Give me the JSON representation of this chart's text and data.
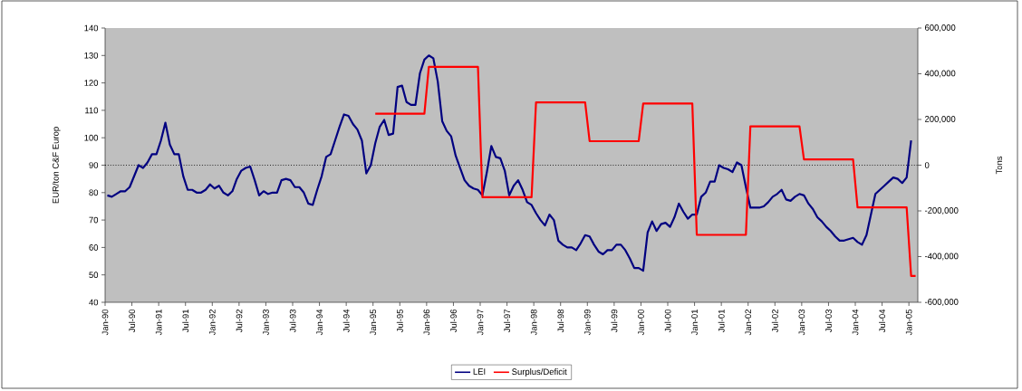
{
  "chart_data": {
    "type": "line",
    "ylabel": "EUR/ton C&F Europ",
    "y2label": "Tons",
    "x": [
      "1990-01",
      "1990-02",
      "1990-03",
      "1990-04",
      "1990-05",
      "1990-06",
      "1990-07",
      "1990-08",
      "1990-09",
      "1990-10",
      "1990-11",
      "1990-12",
      "1991-01",
      "1991-02",
      "1991-03",
      "1991-04",
      "1991-05",
      "1991-06",
      "1991-07",
      "1991-08",
      "1991-09",
      "1991-10",
      "1991-11",
      "1991-12",
      "1992-01",
      "1992-02",
      "1992-03",
      "1992-04",
      "1992-05",
      "1992-06",
      "1992-07",
      "1992-08",
      "1992-09",
      "1992-10",
      "1992-11",
      "1992-12",
      "1993-01",
      "1993-02",
      "1993-03",
      "1993-04",
      "1993-05",
      "1993-06",
      "1993-07",
      "1993-08",
      "1993-09",
      "1993-10",
      "1993-11",
      "1993-12",
      "1994-01",
      "1994-02",
      "1994-03",
      "1994-04",
      "1994-05",
      "1994-06",
      "1994-07",
      "1994-08",
      "1994-09",
      "1994-10",
      "1994-11",
      "1994-12",
      "1995-01",
      "1995-02",
      "1995-03",
      "1995-04",
      "1995-05",
      "1995-06",
      "1995-07",
      "1995-08",
      "1995-09",
      "1995-10",
      "1995-11",
      "1995-12",
      "1996-01",
      "1996-02",
      "1996-03",
      "1996-04",
      "1996-05",
      "1996-06",
      "1996-07",
      "1996-08",
      "1996-09",
      "1996-10",
      "1996-11",
      "1996-12",
      "1997-01",
      "1997-02",
      "1997-03",
      "1997-04",
      "1997-05",
      "1997-06",
      "1997-07",
      "1997-08",
      "1997-09",
      "1997-10",
      "1997-11",
      "1997-12",
      "1998-01",
      "1998-02",
      "1998-03",
      "1998-04",
      "1998-05",
      "1998-06",
      "1998-07",
      "1998-08",
      "1998-09",
      "1998-10",
      "1998-11",
      "1998-12",
      "1999-01",
      "1999-02",
      "1999-03",
      "1999-04",
      "1999-05",
      "1999-06",
      "1999-07",
      "1999-08",
      "1999-09",
      "1999-10",
      "1999-11",
      "1999-12",
      "2000-01",
      "2000-02",
      "2000-03",
      "2000-04",
      "2000-05",
      "2000-06",
      "2000-07",
      "2000-08",
      "2000-09",
      "2000-10",
      "2000-11",
      "2000-12",
      "2001-01",
      "2001-02",
      "2001-03",
      "2001-04",
      "2001-05",
      "2001-06",
      "2001-07",
      "2001-08",
      "2001-09",
      "2001-10",
      "2001-11",
      "2001-12",
      "2002-01",
      "2002-02",
      "2002-03",
      "2002-04",
      "2002-05",
      "2002-06",
      "2002-07",
      "2002-08",
      "2002-09",
      "2002-10",
      "2002-11",
      "2002-12",
      "2003-01",
      "2003-02",
      "2003-03",
      "2003-04",
      "2003-05",
      "2003-06",
      "2003-07",
      "2003-08",
      "2003-09",
      "2003-10",
      "2003-11",
      "2003-12",
      "2004-01",
      "2004-02",
      "2004-03",
      "2004-04",
      "2004-05",
      "2004-06",
      "2004-07",
      "2004-08",
      "2004-09",
      "2004-10",
      "2004-11",
      "2004-12",
      "2005-01"
    ],
    "series": [
      {
        "name": "LEI",
        "color": "#000080",
        "values": [
          79,
          78.5,
          79.5,
          80.5,
          80.5,
          82,
          86,
          90,
          89,
          91,
          94,
          94,
          99,
          105.5,
          97.5,
          94,
          94,
          86,
          81,
          81,
          80,
          80,
          81,
          83,
          81.5,
          82.5,
          80,
          79,
          80.5,
          85,
          88,
          89,
          89.5,
          84.5,
          79,
          80.5,
          79.5,
          80,
          80,
          84.5,
          85,
          84.5,
          82,
          82,
          80,
          76,
          75.5,
          81,
          86,
          93,
          94,
          99,
          104,
          108.5,
          108,
          105,
          103,
          99,
          87,
          90,
          98,
          104,
          106.5,
          101,
          101.5,
          118.5,
          119,
          113,
          112,
          112,
          123.5,
          128.5,
          130,
          129,
          120.5,
          106,
          102.5,
          100.5,
          93.5,
          89,
          84.5,
          82.5,
          81.5,
          81,
          79,
          87.5,
          97,
          93,
          92.5,
          88,
          79,
          82.5,
          84.5,
          81,
          76.5,
          75.5,
          72.5,
          70,
          68,
          72,
          70,
          62.5,
          61,
          60,
          60,
          59,
          61.5,
          64.5,
          64,
          61,
          58.5,
          57.5,
          59,
          59,
          61,
          61,
          59,
          56,
          52.5,
          52.5,
          51.5,
          65.5,
          69.5,
          66,
          68.5,
          69,
          67.5,
          71,
          76,
          73,
          70.5,
          72,
          72,
          78.5,
          80,
          84,
          84,
          90,
          89,
          88.5,
          87.5,
          91,
          90,
          82,
          74.5,
          74.5,
          74.5,
          75,
          76.5,
          78.5,
          79.5,
          81,
          77.5,
          77,
          78.5,
          79.5,
          79,
          76,
          74,
          71,
          69.5,
          67.5,
          66,
          64,
          62.5,
          62.5,
          63,
          63.5,
          62,
          61,
          64.5,
          72,
          79.5,
          81,
          82.5,
          84,
          85.5,
          85,
          83.5,
          85.5,
          99
        ]
      },
      {
        "name": "Surplus/Deficit",
        "color": "#ff0000",
        "axis": "y2",
        "x": [
          "1995-01",
          "1995-12",
          "1996-01",
          "1996-12",
          "1997-01",
          "1997-12",
          "1998-01",
          "1998-12",
          "1999-01",
          "1999-12",
          "2000-01",
          "2000-12",
          "2001-01",
          "2001-12",
          "2002-01",
          "2002-12",
          "2003-01",
          "2003-12",
          "2004-01",
          "2004-12",
          "2005-01",
          "2005-02"
        ],
        "values": [
          225000,
          225000,
          430000,
          430000,
          -140000,
          -140000,
          275000,
          275000,
          105000,
          105000,
          270000,
          270000,
          -305000,
          -305000,
          170000,
          170000,
          25000,
          25000,
          -185000,
          -185000,
          -485000,
          -485000
        ]
      }
    ],
    "xlim": [
      "1990-01",
      "2005-03"
    ],
    "xticks": [
      {
        "value": "1990-01",
        "label": "Jan-90"
      },
      {
        "value": "1990-07",
        "label": "Jul-90"
      },
      {
        "value": "1991-01",
        "label": "Jan-91"
      },
      {
        "value": "1991-07",
        "label": "Jul-91"
      },
      {
        "value": "1992-01",
        "label": "Jan-92"
      },
      {
        "value": "1992-07",
        "label": "Jul-92"
      },
      {
        "value": "1993-01",
        "label": "Jan-93"
      },
      {
        "value": "1993-07",
        "label": "Jul-93"
      },
      {
        "value": "1994-01",
        "label": "Jan-94"
      },
      {
        "value": "1994-07",
        "label": "Jul-94"
      },
      {
        "value": "1995-01",
        "label": "Jan-95"
      },
      {
        "value": "1995-07",
        "label": "Jul-95"
      },
      {
        "value": "1996-01",
        "label": "Jan-96"
      },
      {
        "value": "1996-07",
        "label": "Jul-96"
      },
      {
        "value": "1997-01",
        "label": "Jan-97"
      },
      {
        "value": "1997-07",
        "label": "Jul-97"
      },
      {
        "value": "1998-01",
        "label": "Jan-98"
      },
      {
        "value": "1998-07",
        "label": "Jul-98"
      },
      {
        "value": "1999-01",
        "label": "Jan-99"
      },
      {
        "value": "1999-07",
        "label": "Jul-99"
      },
      {
        "value": "2000-01",
        "label": "Jan-00"
      },
      {
        "value": "2000-07",
        "label": "Jul-00"
      },
      {
        "value": "2001-01",
        "label": "Jan-01"
      },
      {
        "value": "2001-07",
        "label": "Jul-01"
      },
      {
        "value": "2002-01",
        "label": "Jan-02"
      },
      {
        "value": "2002-07",
        "label": "Jul-02"
      },
      {
        "value": "2003-01",
        "label": "Jan-03"
      },
      {
        "value": "2003-07",
        "label": "Jul-03"
      },
      {
        "value": "2004-01",
        "label": "Jan-04"
      },
      {
        "value": "2004-07",
        "label": "Jul-04"
      },
      {
        "value": "2005-01",
        "label": "Jan-05"
      }
    ],
    "ylim": [
      40,
      140
    ],
    "yticks": [
      40,
      50,
      60,
      70,
      80,
      90,
      100,
      110,
      120,
      130,
      140
    ],
    "y2lim": [
      -600000,
      600000
    ],
    "y2ticks": [
      {
        "value": -600000,
        "label": "-600,000"
      },
      {
        "value": -400000,
        "label": "-400,000"
      },
      {
        "value": -200000,
        "label": "-200,000"
      },
      0,
      {
        "value": 200000,
        "label": "200,000"
      },
      {
        "value": 400000,
        "label": "400,000"
      },
      {
        "value": 600000,
        "label": "600,000"
      }
    ],
    "ref_lines": [
      {
        "axis": "y",
        "value": 90,
        "color": "#000000",
        "line_style": "dotted"
      }
    ],
    "legend": "bottom"
  }
}
